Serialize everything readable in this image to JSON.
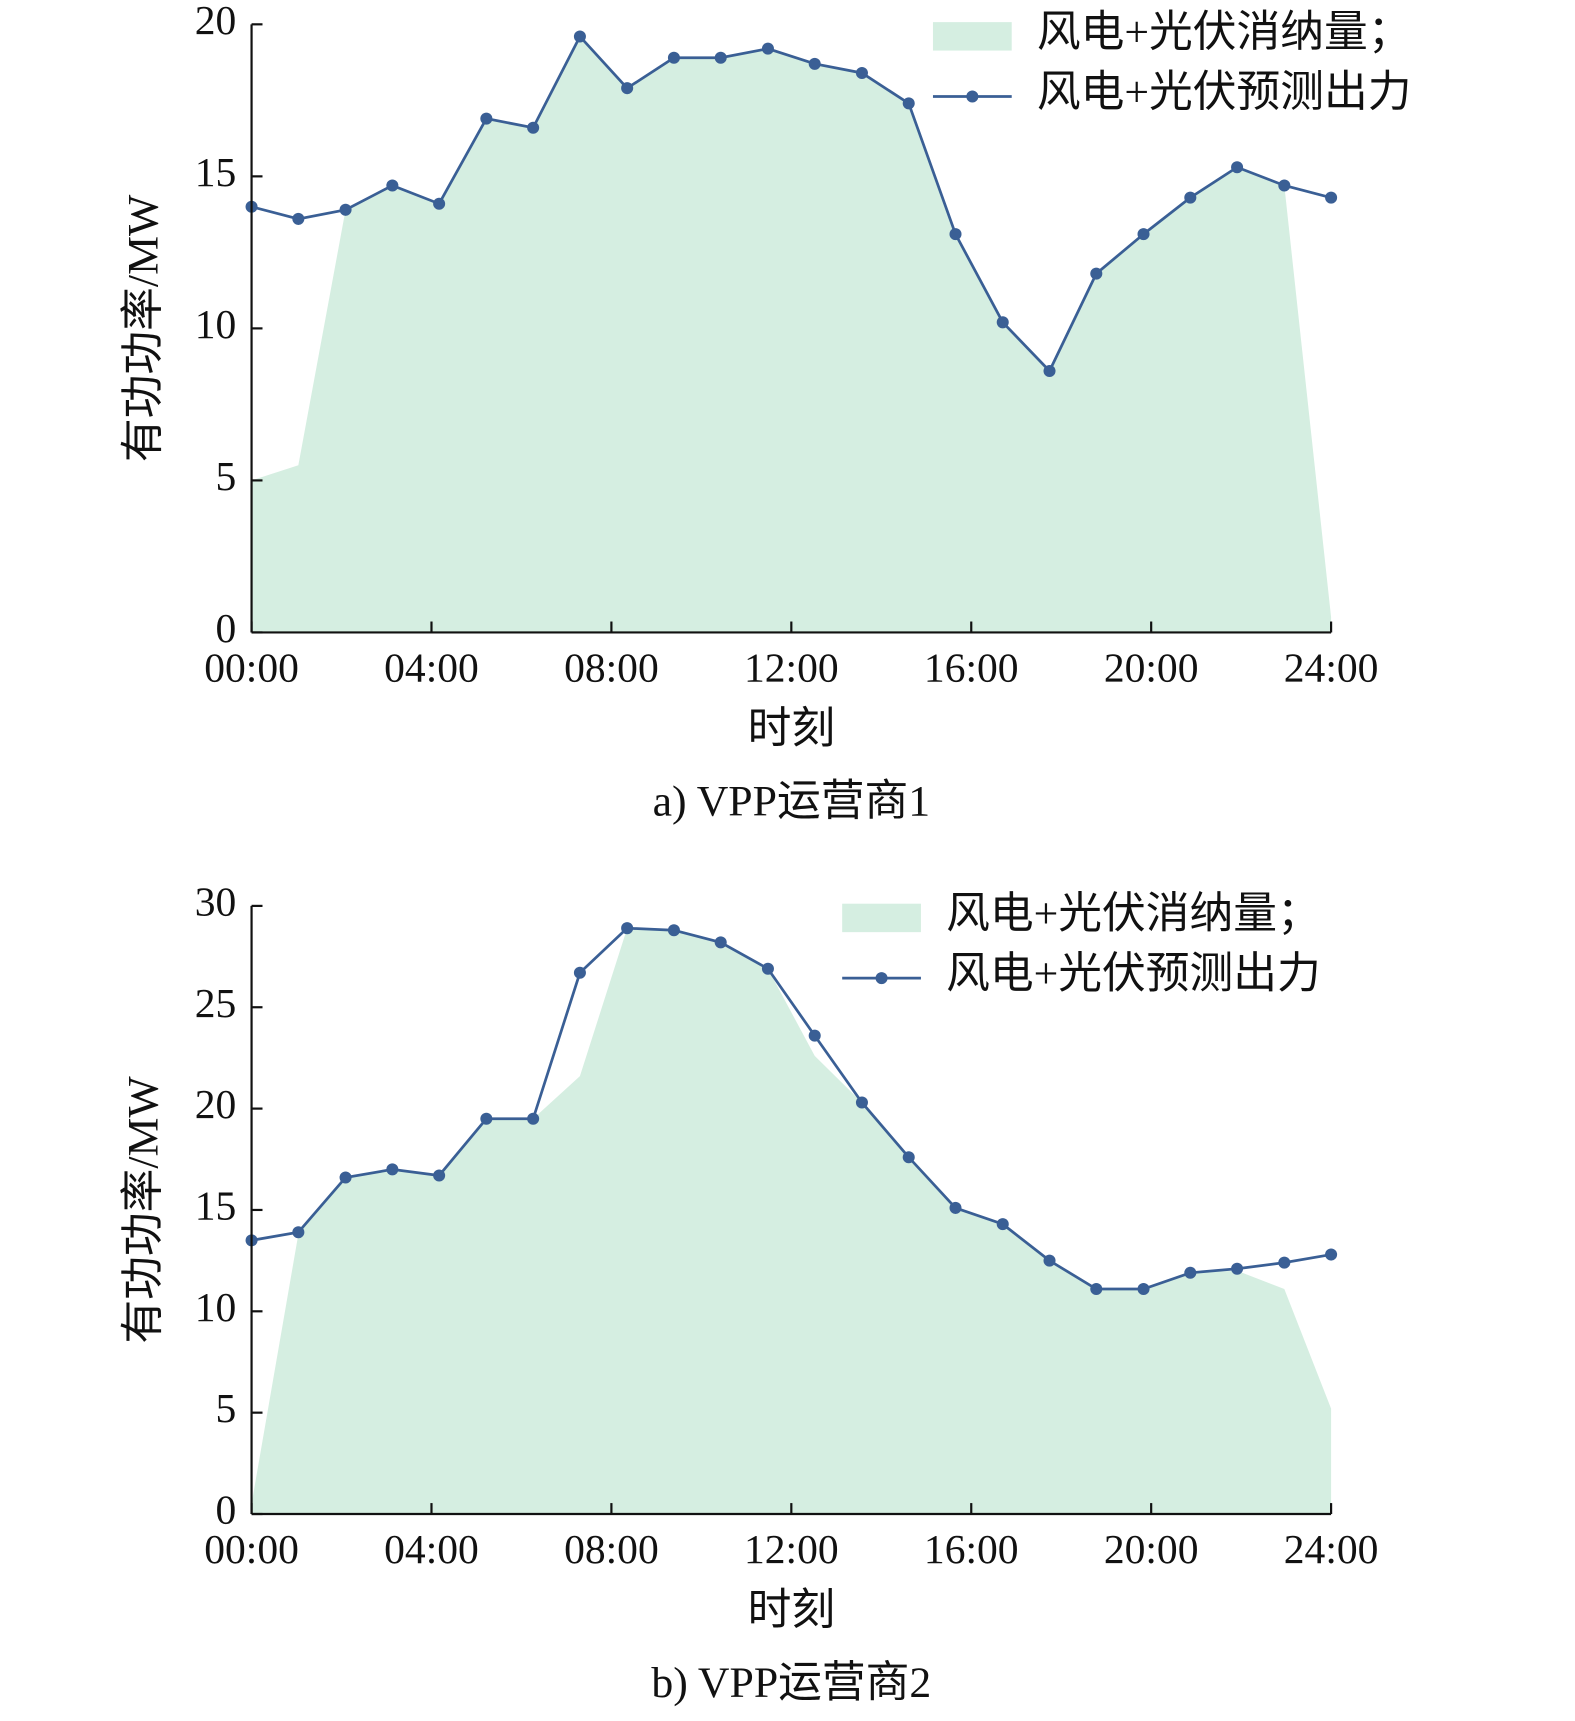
{
  "chart_data": [
    {
      "type": "line",
      "caption": "a) VPP运营商1",
      "xlabel": "时刻",
      "ylabel": "有功功率/MW",
      "legend": "upper right",
      "x": [
        0,
        1.04,
        2.09,
        3.13,
        4.17,
        5.22,
        6.26,
        7.3,
        8.35,
        9.39,
        10.43,
        11.48,
        12.52,
        13.57,
        14.61,
        15.65,
        16.7,
        17.74,
        18.78,
        19.83,
        20.87,
        21.91,
        22.96,
        24
      ],
      "xlim": [
        0,
        24
      ],
      "xticks": [
        {
          "value": 0,
          "label": "00:00"
        },
        {
          "value": 4,
          "label": "04:00"
        },
        {
          "value": 8,
          "label": "08:00"
        },
        {
          "value": 12,
          "label": "12:00"
        },
        {
          "value": 16,
          "label": "16:00"
        },
        {
          "value": 20,
          "label": "20:00"
        },
        {
          "value": 24,
          "label": "24:00"
        }
      ],
      "ylim": [
        0,
        20
      ],
      "yticks": [
        0,
        5,
        10,
        15,
        20
      ],
      "series": [
        {
          "name": "风电+光伏消纳量；",
          "type": "area",
          "color": "#d5eee1",
          "values": [
            5.0,
            5.5,
            13.9,
            14.7,
            14.1,
            16.9,
            16.6,
            19.6,
            17.9,
            18.9,
            18.9,
            19.2,
            18.7,
            18.4,
            17.4,
            13.1,
            10.2,
            8.6,
            11.8,
            13.1,
            14.3,
            15.3,
            14.7,
            0.5
          ]
        },
        {
          "name": "风电+光伏预测出力",
          "type": "line",
          "color": "#3a5f95",
          "values": [
            14.0,
            13.6,
            13.9,
            14.7,
            14.1,
            16.9,
            16.6,
            19.6,
            17.9,
            18.9,
            18.9,
            19.2,
            18.7,
            18.4,
            17.4,
            13.1,
            10.2,
            8.6,
            11.8,
            13.1,
            14.3,
            15.3,
            14.7,
            14.3
          ]
        }
      ]
    },
    {
      "type": "line",
      "caption": "b) VPP运营商2",
      "xlabel": "时刻",
      "ylabel": "有功功率/MW",
      "legend": "upper right",
      "x": [
        0,
        1.04,
        2.09,
        3.13,
        4.17,
        5.22,
        6.26,
        7.3,
        8.35,
        9.39,
        10.43,
        11.48,
        12.52,
        13.57,
        14.61,
        15.65,
        16.7,
        17.74,
        18.78,
        19.83,
        20.87,
        21.91,
        22.96,
        24
      ],
      "xlim": [
        0,
        24
      ],
      "xticks": [
        {
          "value": 0,
          "label": "00:00"
        },
        {
          "value": 4,
          "label": "04:00"
        },
        {
          "value": 8,
          "label": "08:00"
        },
        {
          "value": 12,
          "label": "12:00"
        },
        {
          "value": 16,
          "label": "16:00"
        },
        {
          "value": 20,
          "label": "20:00"
        },
        {
          "value": 24,
          "label": "24:00"
        }
      ],
      "ylim": [
        0,
        30
      ],
      "yticks": [
        0,
        5,
        10,
        15,
        20,
        25,
        30
      ],
      "series": [
        {
          "name": "风电+光伏消纳量；",
          "type": "area",
          "color": "#d5eee1",
          "values": [
            0.5,
            13.8,
            16.6,
            17.0,
            16.7,
            19.5,
            19.5,
            21.6,
            28.9,
            28.8,
            28.2,
            26.9,
            22.6,
            20.3,
            17.6,
            15.1,
            14.3,
            12.5,
            11.1,
            11.1,
            11.9,
            12.0,
            11.1,
            5.2
          ]
        },
        {
          "name": "风电+光伏预测出力",
          "type": "line",
          "color": "#3a5f95",
          "values": [
            13.5,
            13.9,
            16.6,
            17.0,
            16.7,
            19.5,
            19.5,
            26.7,
            28.9,
            28.8,
            28.2,
            26.9,
            23.6,
            20.3,
            17.6,
            15.1,
            14.3,
            12.5,
            11.1,
            11.1,
            11.9,
            12.1,
            12.4,
            12.8
          ]
        }
      ]
    }
  ]
}
